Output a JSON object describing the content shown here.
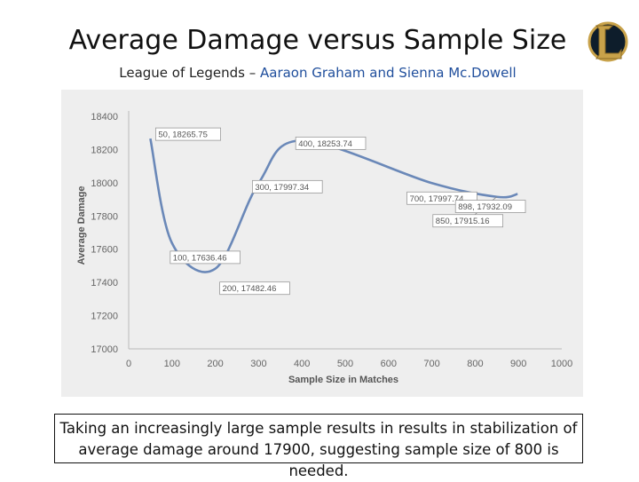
{
  "slide": {
    "title": "Average Damage versus Sample Size",
    "subtitle_prefix": "League of Legends – ",
    "subtitle_authors": "Aaraon Graham and Sienna Mc.Dowell",
    "logo_letter": "L",
    "caption": "Taking an increasingly large sample results in results in stabilization of average damage around 17900, suggesting sample size of 800 is needed."
  },
  "colors": {
    "line": "#6a88b8",
    "panel": "#eeeeee",
    "logo_gold": "#c8a24a",
    "logo_dark": "#0e1d2b",
    "authors": "#1f4e9c"
  },
  "chart_data": {
    "type": "line",
    "title": "",
    "xlabel": "Sample Size in Matches",
    "ylabel": "Average Damage",
    "xlim": [
      0,
      1000
    ],
    "ylim": [
      17000,
      18400
    ],
    "xticks": [
      0,
      100,
      200,
      300,
      400,
      500,
      600,
      700,
      800,
      900,
      1000
    ],
    "yticks": [
      17000,
      17200,
      17400,
      17600,
      17800,
      18000,
      18200,
      18400
    ],
    "grid": false,
    "smooth": true,
    "series": [
      {
        "x": [
          50,
          100,
          200,
          300,
          400,
          700,
          850,
          898
        ],
        "y": [
          18265.75,
          17636.46,
          17482.46,
          17997.34,
          18253.74,
          17997.74,
          17915.16,
          17932.09
        ]
      }
    ],
    "annotations": [
      {
        "text": "50, 18265.75",
        "x": 50,
        "y": 18265.75
      },
      {
        "text": "100, 17636.46",
        "x": 100,
        "y": 17636.46
      },
      {
        "text": "200, 17482.46",
        "x": 200,
        "y": 17482.46
      },
      {
        "text": "300, 17997.34",
        "x": 300,
        "y": 17997.34
      },
      {
        "text": "400, 18253.74",
        "x": 400,
        "y": 18253.74
      },
      {
        "text": "700, 17997.74",
        "x": 700,
        "y": 17997.74
      },
      {
        "text": "850, 17915.16",
        "x": 850,
        "y": 17915.16
      },
      {
        "text": "898, 17932.09",
        "x": 898,
        "y": 17932.09
      }
    ]
  }
}
